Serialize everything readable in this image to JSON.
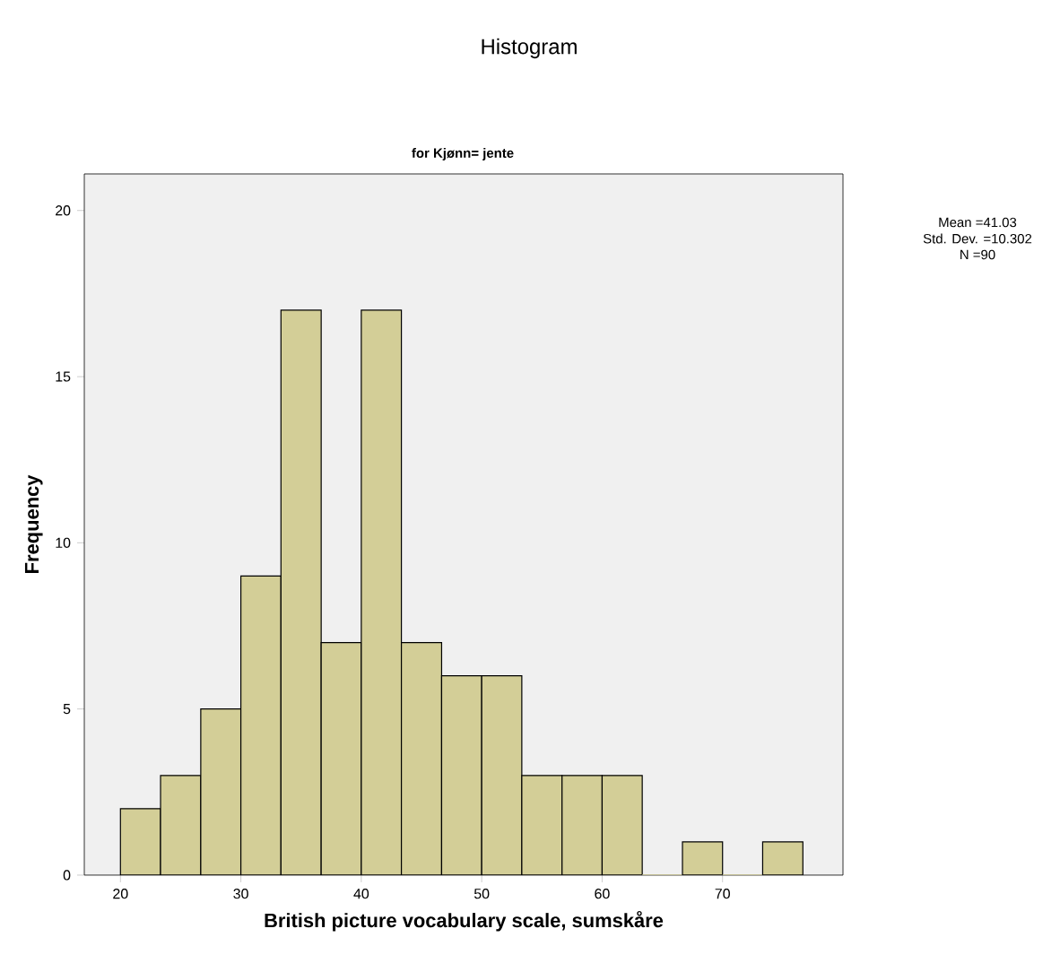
{
  "chart_data": {
    "type": "histogram",
    "title": "Histogram",
    "subtitle": "for Kjønn= jente",
    "xlabel": "British picture vocabulary scale, sumskåre",
    "ylabel": "Frequency",
    "bins": [
      20,
      23.33,
      26.67,
      30,
      33.33,
      36.67,
      40,
      43.33,
      46.67,
      50,
      53.33,
      56.67,
      60,
      63.33,
      66.67,
      70,
      73.33,
      76.67
    ],
    "values": [
      2,
      3,
      5,
      9,
      17,
      7,
      17,
      7,
      6,
      6,
      3,
      3,
      3,
      0,
      1,
      0,
      1
    ],
    "color": "#d3ce97",
    "xlim": [
      17,
      80
    ],
    "xticks": [
      20,
      30,
      40,
      50,
      60,
      70
    ],
    "ylim": [
      0,
      21.1
    ],
    "yticks": [
      0,
      5,
      10,
      15,
      20
    ],
    "grid": false,
    "annotations": [
      "Mean =41.03",
      "Std. Dev. =10.302",
      "N =90"
    ]
  }
}
